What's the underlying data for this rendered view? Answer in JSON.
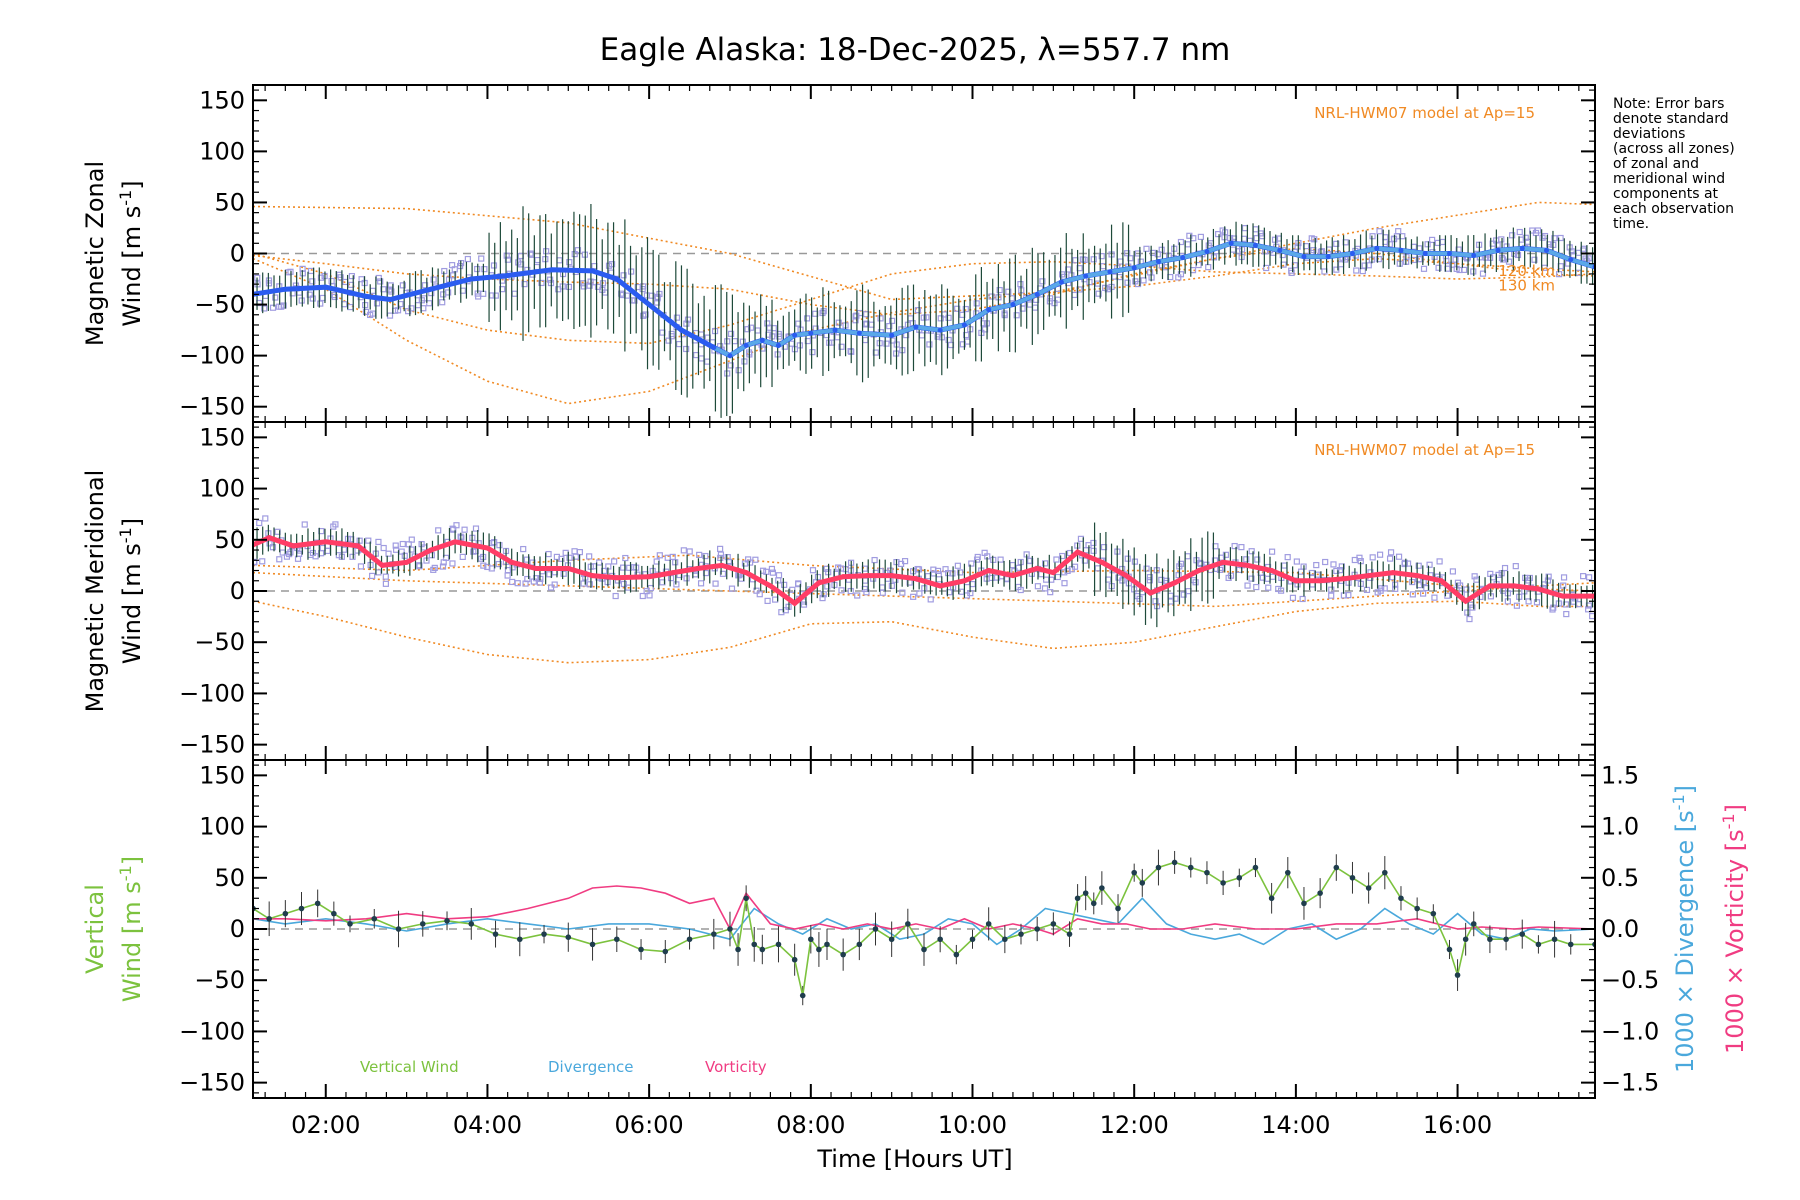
{
  "chart_data": {
    "type": "line",
    "title": "Eagle Alaska: 18-Dec-2025, λ=557.7 nm",
    "xlabel": "Time [Hours UT]",
    "xlim": [
      1.1,
      17.7
    ],
    "x_ticks": [
      {
        "v": 2,
        "label": "02:00"
      },
      {
        "v": 4,
        "label": "04:00"
      },
      {
        "v": 6,
        "label": "06:00"
      },
      {
        "v": 8,
        "label": "08:00"
      },
      {
        "v": 10,
        "label": "10:00"
      },
      {
        "v": 12,
        "label": "12:00"
      },
      {
        "v": 14,
        "label": "14:00"
      },
      {
        "v": 16,
        "label": "16:00"
      }
    ],
    "ylim": [
      -165,
      165
    ],
    "y_ticks": [
      {
        "v": 150,
        "label": "150"
      },
      {
        "v": 100,
        "label": "100"
      },
      {
        "v": 50,
        "label": "50"
      },
      {
        "v": 0,
        "label": "0"
      },
      {
        "v": -50,
        "label": "−50"
      },
      {
        "v": -100,
        "label": "−100"
      },
      {
        "v": -150,
        "label": "−150"
      }
    ],
    "note": [
      "Note: Error bars",
      "denote standard",
      "deviations",
      "(across all zones)",
      "of zonal and",
      "meridional wind",
      "components at",
      "each observation",
      "time."
    ],
    "colors": {
      "zonal": "#2b5cf0",
      "zonal_light": "#5aa8e8",
      "meridional": "#ff3d66",
      "model": "#f08a24",
      "vertical": "#7cc23e",
      "vertical_marker": "#1f3d4d",
      "divergence": "#4aa8dc",
      "vorticity": "#f03c82",
      "scatter": "#a09ce0",
      "errbar": "#1e4a3a"
    },
    "panels": [
      {
        "id": "zonal",
        "ylabel_line1": "Magnetic Zonal",
        "ylabel_line2": "Wind [m s",
        "ylabel_sup": "-1",
        "ylabel_close": "]",
        "model_label": "NRL-HWM07 model at Ap=15",
        "km_labels": [
          "120 km",
          "130 km"
        ],
        "series": [
          {
            "name": "Magnetic Zonal Wind",
            "x": [
              1.1,
              1.5,
              2.0,
              2.5,
              2.8,
              3.3,
              3.8,
              4.2,
              4.8,
              5.3,
              5.6,
              6.0,
              6.4,
              6.8,
              7.0,
              7.2,
              7.4,
              7.6,
              7.8,
              8.0,
              8.3,
              8.6,
              9.0,
              9.3,
              9.6,
              9.9,
              10.2,
              10.5,
              10.8,
              11.1,
              11.4,
              11.7,
              12.0,
              12.3,
              12.6,
              12.9,
              13.2,
              13.5,
              13.8,
              14.1,
              14.4,
              14.7,
              15.0,
              15.3,
              15.6,
              15.9,
              16.2,
              16.5,
              16.8,
              17.1,
              17.4,
              17.7
            ],
            "y": [
              -40,
              -35,
              -33,
              -42,
              -45,
              -35,
              -25,
              -22,
              -16,
              -17,
              -25,
              -50,
              -75,
              -92,
              -100,
              -90,
              -85,
              -90,
              -80,
              -78,
              -75,
              -78,
              -80,
              -72,
              -75,
              -70,
              -55,
              -50,
              -40,
              -28,
              -22,
              -18,
              -14,
              -8,
              -4,
              2,
              10,
              8,
              3,
              -3,
              -3,
              0,
              5,
              3,
              0,
              0,
              -2,
              3,
              5,
              3,
              -6,
              -13
            ]
          }
        ],
        "model_curves": [
          {
            "x": [
              1.1,
              3,
              5,
              7,
              9,
              11,
              13,
              15,
              17,
              17.7
            ],
            "y": [
              46,
              44,
              30,
              0,
              -45,
              -38,
              -5,
              25,
              50,
              48
            ]
          },
          {
            "x": [
              1.1,
              2,
              3,
              4,
              5,
              6,
              7,
              8,
              9,
              10,
              11,
              12,
              13,
              14,
              15,
              16,
              17,
              17.7
            ],
            "y": [
              -5,
              -35,
              -85,
              -125,
              -147,
              -135,
              -105,
              -75,
              -58,
              -45,
              -38,
              -32,
              -22,
              -10,
              -5,
              -10,
              -20,
              -22
            ]
          },
          {
            "x": [
              1.1,
              2,
              3,
              4,
              5,
              6,
              7,
              8,
              9,
              10,
              11,
              12,
              13,
              14,
              15,
              16,
              17,
              17.7
            ],
            "y": [
              0,
              -20,
              -55,
              -75,
              -85,
              -88,
              -70,
              -45,
              -20,
              -10,
              -8,
              -12,
              -18,
              -20,
              -22,
              -25,
              -23,
              -20
            ]
          },
          {
            "x": [
              1.1,
              2,
              3,
              4,
              5,
              6,
              7,
              8,
              9,
              10,
              11,
              12,
              13,
              14,
              15,
              16,
              17,
              17.7
            ],
            "y": [
              -2,
              -10,
              -20,
              -25,
              -28,
              -30,
              -35,
              -50,
              -60,
              -55,
              -40,
              -20,
              -5,
              5,
              0,
              -10,
              -15,
              -18
            ]
          }
        ]
      },
      {
        "id": "meridional",
        "ylabel_line1": "Magnetic Meridional",
        "ylabel_line2": "Wind [m s",
        "ylabel_sup": "-1",
        "ylabel_close": "]",
        "model_label": "NRL-HWM07 model at Ap=15",
        "series": [
          {
            "name": "Magnetic Meridional Wind",
            "x": [
              1.1,
              1.3,
              1.6,
              2.0,
              2.4,
              2.7,
              3.0,
              3.3,
              3.6,
              4.0,
              4.3,
              4.6,
              5.0,
              5.3,
              5.6,
              6.0,
              6.3,
              6.6,
              6.9,
              7.2,
              7.5,
              7.8,
              8.1,
              8.4,
              8.7,
              9.0,
              9.3,
              9.6,
              9.9,
              10.2,
              10.5,
              10.8,
              11.0,
              11.3,
              11.6,
              11.9,
              12.2,
              12.5,
              12.8,
              13.1,
              13.4,
              13.7,
              14.0,
              14.3,
              14.6,
              14.9,
              15.2,
              15.5,
              15.8,
              16.1,
              16.4,
              16.7,
              17.0,
              17.3,
              17.7
            ],
            "y": [
              45,
              52,
              44,
              48,
              44,
              25,
              28,
              40,
              48,
              42,
              28,
              22,
              22,
              15,
              13,
              14,
              18,
              22,
              25,
              18,
              5,
              -12,
              8,
              14,
              15,
              15,
              12,
              5,
              10,
              20,
              15,
              22,
              18,
              38,
              28,
              15,
              -2,
              8,
              20,
              28,
              25,
              20,
              10,
              10,
              12,
              15,
              18,
              15,
              10,
              -10,
              5,
              5,
              2,
              -5,
              -5
            ]
          }
        ],
        "model_curves": [
          {
            "x": [
              1.1,
              3,
              5,
              6.5,
              8,
              10,
              12,
              14,
              16,
              17.7
            ],
            "y": [
              25,
              20,
              30,
              35,
              25,
              18,
              20,
              18,
              5,
              0
            ]
          },
          {
            "x": [
              1.1,
              2,
              3,
              4,
              5,
              6,
              7,
              8,
              9,
              10,
              11,
              12,
              13,
              14,
              15,
              16,
              17,
              17.7
            ],
            "y": [
              -10,
              -25,
              -45,
              -62,
              -70,
              -67,
              -55,
              -32,
              -30,
              -45,
              -56,
              -50,
              -35,
              -20,
              -12,
              -10,
              -15,
              -15
            ]
          },
          {
            "x": [
              1.1,
              3,
              5,
              7,
              9,
              11,
              13,
              15,
              17,
              17.7
            ],
            "y": [
              18,
              10,
              5,
              0,
              -5,
              -10,
              -15,
              -5,
              5,
              8
            ]
          }
        ]
      },
      {
        "id": "vertical",
        "ylabel_line1": "Vertical",
        "ylabel_line2": "Wind [m s",
        "ylabel_sup": "-1",
        "ylabel_close": "]",
        "right_axis": {
          "ylim": [
            -1.65,
            1.65
          ],
          "ticks": [
            {
              "v": 1.5,
              "label": "1.5"
            },
            {
              "v": 1.0,
              "label": "1.0"
            },
            {
              "v": 0.5,
              "label": "0.5"
            },
            {
              "v": 0.0,
              "label": "0.0"
            },
            {
              "v": -0.5,
              "label": "−0.5"
            },
            {
              "v": -1.0,
              "label": "−1.0"
            },
            {
              "v": -1.5,
              "label": "−1.5"
            }
          ],
          "label_div": "1000 × Divergence [s",
          "label_vor": "1000 × Vorticity [s",
          "sup": "-1",
          "close": "]"
        },
        "legend": [
          {
            "name": "Vertical Wind",
            "color_key": "vertical"
          },
          {
            "name": "Divergence",
            "color_key": "divergence"
          },
          {
            "name": "Vorticity",
            "color_key": "vorticity"
          }
        ],
        "series": [
          {
            "name": "Vertical Wind",
            "x": [
              1.1,
              1.3,
              1.5,
              1.7,
              1.9,
              2.1,
              2.3,
              2.6,
              2.9,
              3.2,
              3.5,
              3.8,
              4.1,
              4.4,
              4.7,
              5.0,
              5.3,
              5.6,
              5.9,
              6.2,
              6.5,
              6.8,
              7.0,
              7.1,
              7.2,
              7.3,
              7.4,
              7.6,
              7.8,
              7.9,
              8.0,
              8.1,
              8.2,
              8.4,
              8.6,
              8.8,
              9.0,
              9.2,
              9.4,
              9.6,
              9.8,
              10.0,
              10.2,
              10.4,
              10.6,
              10.8,
              11.0,
              11.2,
              11.3,
              11.4,
              11.5,
              11.6,
              11.8,
              12.0,
              12.1,
              12.3,
              12.5,
              12.7,
              12.9,
              13.1,
              13.3,
              13.5,
              13.7,
              13.9,
              14.1,
              14.3,
              14.5,
              14.7,
              14.9,
              15.1,
              15.3,
              15.5,
              15.7,
              15.9,
              16.0,
              16.1,
              16.2,
              16.4,
              16.6,
              16.8,
              17.0,
              17.2,
              17.4,
              17.7
            ],
            "y": [
              20,
              10,
              15,
              20,
              25,
              15,
              5,
              10,
              0,
              5,
              8,
              5,
              -5,
              -10,
              -5,
              -8,
              -15,
              -10,
              -20,
              -22,
              -10,
              -5,
              0,
              -20,
              30,
              -15,
              -20,
              -15,
              -30,
              -65,
              -10,
              -20,
              -15,
              -25,
              -15,
              0,
              -10,
              5,
              -20,
              -10,
              -25,
              -10,
              5,
              -10,
              -5,
              0,
              5,
              -5,
              30,
              35,
              25,
              40,
              20,
              55,
              45,
              60,
              65,
              60,
              55,
              45,
              50,
              60,
              30,
              55,
              25,
              35,
              60,
              50,
              40,
              55,
              30,
              20,
              15,
              -20,
              -45,
              -10,
              5,
              -10,
              -10,
              -5,
              -15,
              -10,
              -15,
              -15
            ]
          },
          {
            "name": "Divergence",
            "x": [
              1.1,
              1.5,
              2.0,
              2.5,
              3.0,
              3.5,
              4.0,
              4.5,
              5.0,
              5.5,
              6.0,
              6.5,
              7.0,
              7.3,
              7.6,
              7.9,
              8.2,
              8.5,
              8.8,
              9.1,
              9.4,
              9.7,
              10.0,
              10.3,
              10.6,
              10.9,
              11.2,
              11.5,
              11.8,
              12.1,
              12.4,
              12.7,
              13.0,
              13.3,
              13.6,
              13.9,
              14.2,
              14.5,
              14.8,
              15.1,
              15.4,
              15.7,
              16.0,
              16.3,
              16.6,
              16.9,
              17.2,
              17.7
            ],
            "y": [
              0.1,
              0.05,
              0.1,
              0.05,
              -0.02,
              0.05,
              0.1,
              0.05,
              0.0,
              0.05,
              0.05,
              0.0,
              -0.1,
              0.2,
              0.05,
              -0.05,
              0.1,
              0.0,
              0.05,
              -0.1,
              -0.05,
              0.1,
              0.05,
              -0.15,
              0.0,
              0.2,
              0.15,
              0.1,
              0.05,
              0.3,
              0.05,
              -0.05,
              -0.1,
              -0.05,
              -0.15,
              0.0,
              0.05,
              -0.1,
              0.0,
              0.2,
              0.05,
              -0.05,
              0.15,
              -0.05,
              -0.1,
              0.0,
              -0.02,
              0.0
            ]
          },
          {
            "name": "Vorticity",
            "x": [
              1.1,
              1.5,
              2.0,
              2.5,
              3.0,
              3.5,
              4.0,
              4.5,
              5.0,
              5.3,
              5.6,
              5.9,
              6.2,
              6.5,
              6.8,
              7.0,
              7.2,
              7.5,
              7.8,
              8.1,
              8.4,
              8.7,
              9.0,
              9.3,
              9.6,
              9.9,
              10.2,
              10.5,
              10.8,
              11.0,
              11.3,
              11.6,
              11.9,
              12.2,
              12.6,
              13.0,
              13.5,
              14.0,
              14.5,
              15.0,
              15.5,
              16.0,
              16.3,
              16.7,
              17.0,
              17.7
            ],
            "y": [
              0.1,
              0.1,
              0.08,
              0.1,
              0.15,
              0.1,
              0.12,
              0.2,
              0.3,
              0.4,
              0.42,
              0.4,
              0.35,
              0.25,
              0.3,
              0.0,
              0.35,
              0.05,
              0.0,
              0.05,
              0.0,
              0.05,
              0.0,
              0.05,
              0.0,
              0.1,
              0.0,
              0.05,
              0.0,
              -0.05,
              0.1,
              0.05,
              0.05,
              0.0,
              0.0,
              0.05,
              0.0,
              0.0,
              0.05,
              0.05,
              0.1,
              0.0,
              0.02,
              0.0,
              0.02,
              0.0
            ]
          }
        ]
      }
    ]
  }
}
